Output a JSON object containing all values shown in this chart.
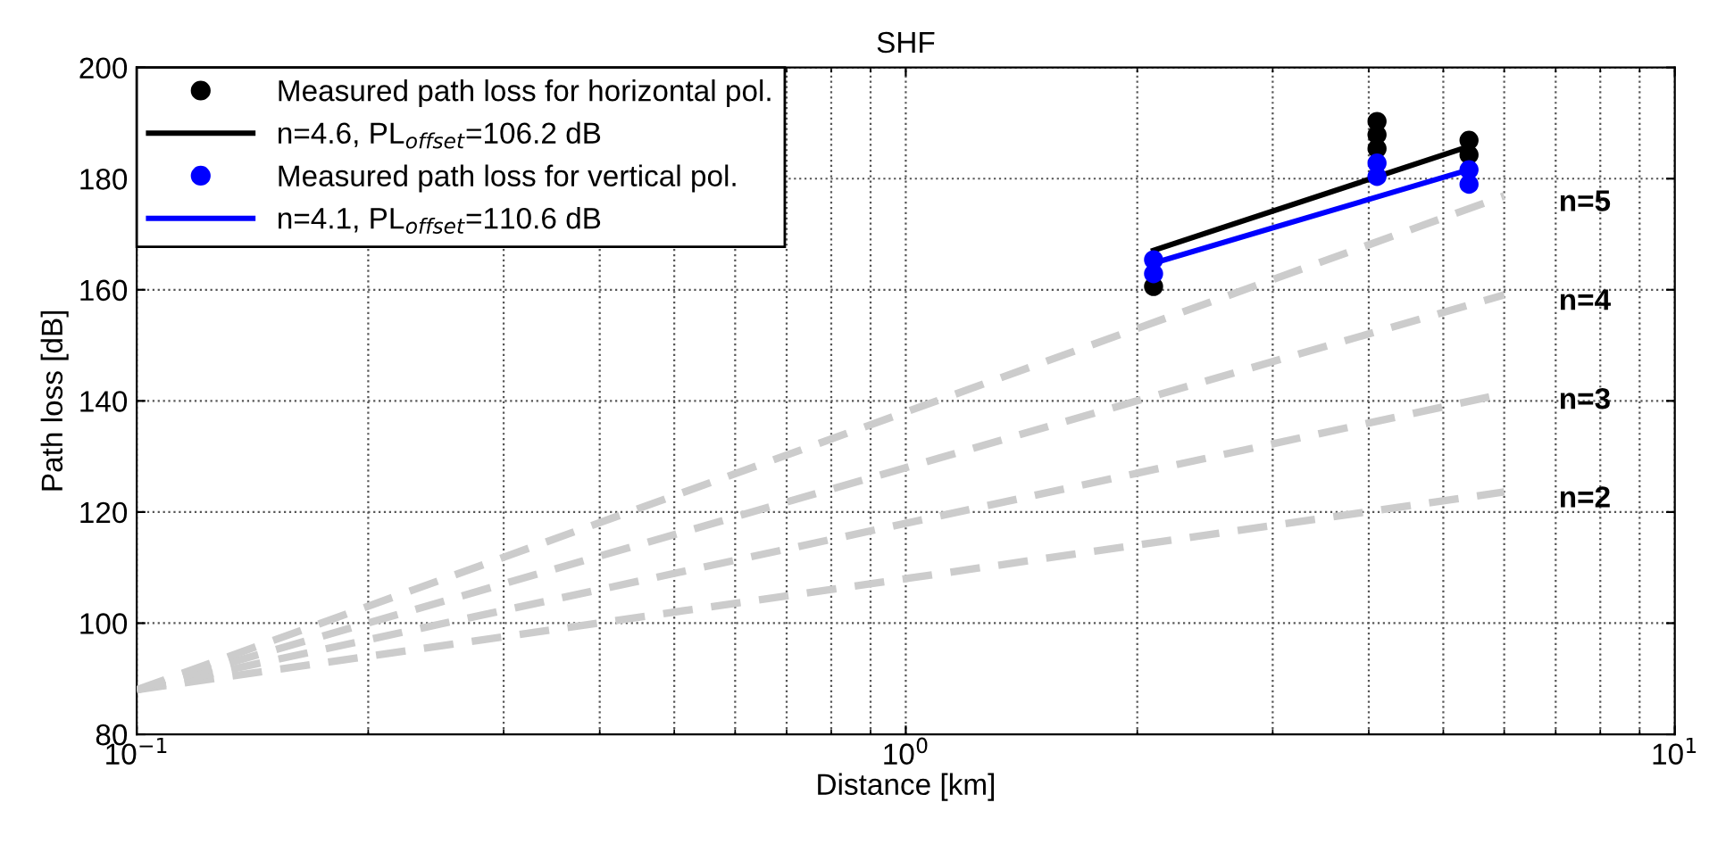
{
  "chart_data": {
    "type": "line",
    "title": "SHF",
    "xlabel": "Distance [km]",
    "ylabel": "Path loss [dB]",
    "log": "x",
    "xlim": [
      0.1,
      10
    ],
    "xticks": [
      {
        "value": 0.1,
        "label": "10$^{−1}$"
      },
      {
        "value": 1,
        "label": "10$^{0}$"
      },
      {
        "value": 10,
        "label": "10$^{1}$"
      }
    ],
    "ylim": [
      80,
      200
    ],
    "yticks": [
      80,
      100,
      120,
      140,
      160,
      180,
      200
    ],
    "grid": true,
    "legend": "top left",
    "series": [
      {
        "type": "line",
        "name": "n=2",
        "color": "#cccccc",
        "line_style": "dashed",
        "x": [
          0.1,
          6
        ],
        "values": [
          88,
          123.6
        ]
      },
      {
        "type": "line",
        "name": "n=3",
        "color": "#cccccc",
        "line_style": "dashed",
        "x": [
          0.1,
          6
        ],
        "values": [
          88,
          141.3
        ]
      },
      {
        "type": "line",
        "name": "n=4",
        "color": "#cccccc",
        "line_style": "dashed",
        "x": [
          0.1,
          6
        ],
        "values": [
          88,
          159.1
        ]
      },
      {
        "type": "line",
        "name": "n=5",
        "color": "#cccccc",
        "line_style": "dashed",
        "x": [
          0.1,
          6
        ],
        "values": [
          88,
          176.9
        ]
      },
      {
        "type": "scatter",
        "name": "Measured path loss for horizontal pol.",
        "color": "#000000",
        "marker": "circle",
        "x": [
          2.1,
          4.1,
          4.1,
          4.1,
          5.4,
          5.4
        ],
        "values": [
          160.6,
          185.4,
          187.9,
          190.3,
          184.3,
          186.9
        ]
      },
      {
        "type": "line",
        "name": "n=4.6, PL$_{offset}$=106.2 dB",
        "color": "#000000",
        "line_style": "solid",
        "x": [
          2.1,
          5.4
        ],
        "values": [
          167.1,
          185.8
        ]
      },
      {
        "type": "scatter",
        "name": "Measured path loss for vertical pol.",
        "color": "#0000ff",
        "marker": "circle",
        "x": [
          2.1,
          2.1,
          4.1,
          4.1,
          5.4,
          5.4
        ],
        "values": [
          162.9,
          165.4,
          180.4,
          182.8,
          179,
          181.6
        ]
      },
      {
        "type": "line",
        "name": "n=4.1, PL$_{offset}$=110.6 dB",
        "color": "#0000ff",
        "line_style": "solid",
        "x": [
          2.1,
          5.4
        ],
        "values": [
          164.8,
          181.6
        ]
      }
    ]
  }
}
